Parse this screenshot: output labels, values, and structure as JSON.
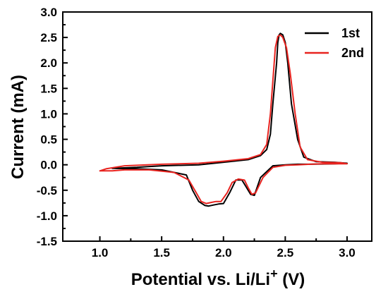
{
  "chart_data": {
    "type": "line",
    "xlabel": "Potential vs. Li/Li",
    "xlabel_sup": "+",
    "xlabel_unit": " (V)",
    "ylabel": "Current (mA)",
    "xlim": [
      0.7,
      3.2
    ],
    "ylim": [
      -1.5,
      3.0
    ],
    "x_ticks": [
      "1.0",
      "1.5",
      "2.0",
      "2.5",
      "3.0"
    ],
    "y_ticks": [
      "-1.5",
      "-1.0",
      "-0.5",
      "0.0",
      "0.5",
      "1.0",
      "1.5",
      "2.0",
      "2.5",
      "3.0"
    ],
    "grid": false,
    "legend_position": "top-right",
    "series": [
      {
        "name": "1st",
        "color": "#000000",
        "x": [
          1.1,
          1.3,
          1.5,
          1.7,
          1.75,
          1.8,
          1.85,
          1.88,
          1.92,
          1.96,
          2.0,
          2.05,
          2.1,
          2.15,
          2.18,
          2.22,
          2.25,
          2.3,
          2.4,
          2.5,
          2.6,
          2.7,
          2.9,
          3.0,
          2.9,
          2.75,
          2.65,
          2.6,
          2.55,
          2.52,
          2.5,
          2.48,
          2.46,
          2.45,
          2.44,
          2.43,
          2.4,
          2.38,
          2.35,
          2.3,
          2.2,
          2.0,
          1.8,
          1.5,
          1.3,
          1.1
        ],
        "y": [
          -0.07,
          -0.08,
          -0.1,
          -0.2,
          -0.5,
          -0.72,
          -0.8,
          -0.81,
          -0.79,
          -0.77,
          -0.76,
          -0.55,
          -0.3,
          -0.3,
          -0.42,
          -0.58,
          -0.6,
          -0.25,
          -0.02,
          0.0,
          0.01,
          0.01,
          0.02,
          0.03,
          0.05,
          0.06,
          0.15,
          0.5,
          1.2,
          2.0,
          2.4,
          2.55,
          2.58,
          2.55,
          2.4,
          2.0,
          1.2,
          0.6,
          0.3,
          0.18,
          0.1,
          0.05,
          0.0,
          -0.02,
          -0.05,
          -0.07
        ]
      },
      {
        "name": "2nd",
        "color": "#e8231f",
        "x": [
          1.0,
          1.1,
          1.2,
          1.4,
          1.6,
          1.72,
          1.78,
          1.82,
          1.86,
          1.9,
          1.94,
          1.98,
          2.03,
          2.07,
          2.12,
          2.17,
          2.2,
          2.23,
          2.26,
          2.32,
          2.4,
          2.5,
          2.6,
          2.7,
          2.8,
          2.9,
          3.0,
          2.95,
          2.8,
          2.68,
          2.62,
          2.58,
          2.54,
          2.51,
          2.48,
          2.46,
          2.44,
          2.42,
          2.38,
          2.35,
          2.3,
          2.2,
          2.0,
          1.8,
          1.5,
          1.2,
          1.05,
          1.0
        ],
        "y": [
          -0.12,
          -0.12,
          -0.1,
          -0.1,
          -0.15,
          -0.3,
          -0.55,
          -0.72,
          -0.76,
          -0.74,
          -0.72,
          -0.72,
          -0.55,
          -0.35,
          -0.28,
          -0.3,
          -0.45,
          -0.58,
          -0.55,
          -0.25,
          -0.05,
          -0.01,
          0.0,
          0.01,
          0.02,
          0.02,
          0.02,
          0.04,
          0.05,
          0.1,
          0.35,
          1.0,
          1.8,
          2.3,
          2.5,
          2.55,
          2.52,
          2.3,
          1.0,
          0.4,
          0.2,
          0.12,
          0.07,
          0.03,
          0.01,
          -0.02,
          -0.08,
          -0.12
        ]
      }
    ]
  }
}
